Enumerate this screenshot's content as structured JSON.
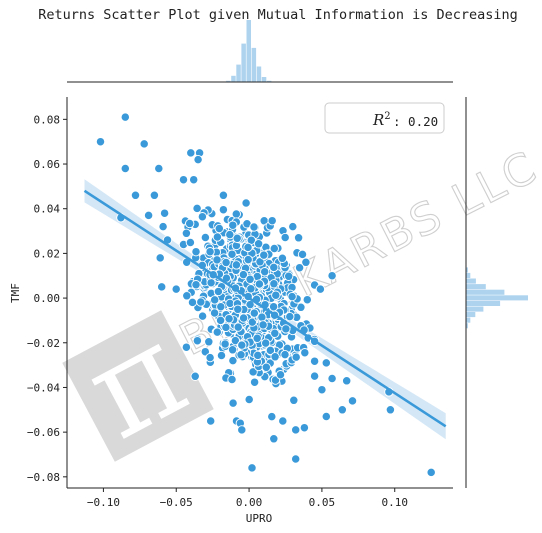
{
  "chart_data": {
    "type": "scatter",
    "title": "Returns Scatter Plot given Mutual Information is Decreasing",
    "xlabel": "UPRO",
    "ylabel": "TMF",
    "xlim": [
      -0.125,
      0.14
    ],
    "ylim": [
      -0.085,
      0.09
    ],
    "xticks": [
      -0.1,
      -0.05,
      0.0,
      0.05,
      0.1
    ],
    "xtick_labels": [
      "−0.10",
      "−0.05",
      "0.00",
      "0.05",
      "0.10"
    ],
    "yticks": [
      0.08,
      0.06,
      0.04,
      0.02,
      0.0,
      -0.02,
      -0.04,
      -0.06,
      -0.08
    ],
    "ytick_labels": [
      "0.08",
      "0.06",
      "0.04",
      "0.02",
      "0.00",
      "−0.02",
      "−0.04",
      "−0.06",
      "−0.08"
    ],
    "grid": false,
    "legend_position": "top-right",
    "legend_text": "R²: 0.20",
    "legend_r2_prefix": "R",
    "legend_r2_sup": "2",
    "legend_r2_value": ": 0.20",
    "point_color": "#3a9ad9",
    "line_color": "#3a9ad9",
    "band_color": "#cfe4f5",
    "hist_color": "#aed3ef",
    "regression": {
      "slope": -0.425,
      "intercept": 0.0,
      "x_range": [
        -0.113,
        0.135
      ]
    },
    "outliers": [
      [
        -0.102,
        0.07
      ],
      [
        -0.085,
        0.081
      ],
      [
        -0.072,
        0.069
      ],
      [
        -0.085,
        0.058
      ],
      [
        -0.062,
        0.058
      ],
      [
        -0.04,
        0.065
      ],
      [
        -0.034,
        0.065
      ],
      [
        -0.035,
        0.062
      ],
      [
        -0.045,
        0.053
      ],
      [
        -0.038,
        0.053
      ],
      [
        -0.078,
        0.046
      ],
      [
        -0.065,
        0.046
      ],
      [
        -0.088,
        0.036
      ],
      [
        -0.069,
        0.037
      ],
      [
        -0.058,
        0.038
      ],
      [
        -0.061,
        0.018
      ],
      [
        -0.06,
        0.005
      ],
      [
        -0.05,
        0.004
      ],
      [
        -0.043,
        -0.022
      ],
      [
        -0.037,
        -0.035
      ],
      [
        0.002,
        -0.076
      ],
      [
        0.032,
        -0.072
      ],
      [
        0.017,
        -0.063
      ],
      [
        0.125,
        -0.078
      ],
      [
        0.097,
        -0.05
      ],
      [
        0.096,
        -0.042
      ],
      [
        0.064,
        -0.05
      ],
      [
        0.053,
        -0.053
      ],
      [
        0.038,
        -0.058
      ],
      [
        0.032,
        -0.059
      ],
      [
        -0.006,
        -0.056
      ],
      [
        -0.005,
        -0.059
      ],
      [
        -0.011,
        -0.047
      ],
      [
        0.053,
        -0.029
      ],
      [
        0.057,
        -0.036
      ],
      [
        0.067,
        -0.037
      ],
      [
        0.071,
        -0.046
      ],
      [
        0.05,
        -0.041
      ],
      [
        0.057,
        0.01
      ],
      [
        0.049,
        0.004
      ],
      [
        0.03,
        0.032
      ],
      [
        0.034,
        0.027
      ],
      [
        0.039,
        0.016
      ],
      [
        -0.059,
        0.032
      ],
      [
        -0.056,
        0.026
      ],
      [
        -0.043,
        0.029
      ]
    ],
    "cloud": {
      "n": 820,
      "x_sd": 0.017,
      "slope": -0.36,
      "y_sd": 0.0165
    },
    "top_hist": {
      "bin_width": 0.0035,
      "bins": [
        {
          "x": -0.014,
          "h": 0.02
        },
        {
          "x": -0.0105,
          "h": 0.1
        },
        {
          "x": -0.007,
          "h": 0.28
        },
        {
          "x": -0.0035,
          "h": 0.62
        },
        {
          "x": 0.0,
          "h": 1.0
        },
        {
          "x": 0.0035,
          "h": 0.55
        },
        {
          "x": 0.007,
          "h": 0.25
        },
        {
          "x": 0.0105,
          "h": 0.08
        },
        {
          "x": 0.014,
          "h": 0.02
        }
      ]
    },
    "right_hist": {
      "bin_width": 0.0025,
      "bins": [
        {
          "y": 0.0125,
          "h": 0.03
        },
        {
          "y": 0.01,
          "h": 0.07
        },
        {
          "y": 0.0075,
          "h": 0.16
        },
        {
          "y": 0.005,
          "h": 0.32
        },
        {
          "y": 0.0025,
          "h": 0.62
        },
        {
          "y": 0.0,
          "h": 1.0
        },
        {
          "y": -0.0025,
          "h": 0.55
        },
        {
          "y": -0.005,
          "h": 0.28
        },
        {
          "y": -0.0075,
          "h": 0.15
        },
        {
          "y": -0.01,
          "h": 0.07
        },
        {
          "y": -0.0125,
          "h": 0.03
        }
      ]
    }
  },
  "watermark": {
    "text": "BLACKARBS LLC",
    "logo_glyph": "π"
  }
}
